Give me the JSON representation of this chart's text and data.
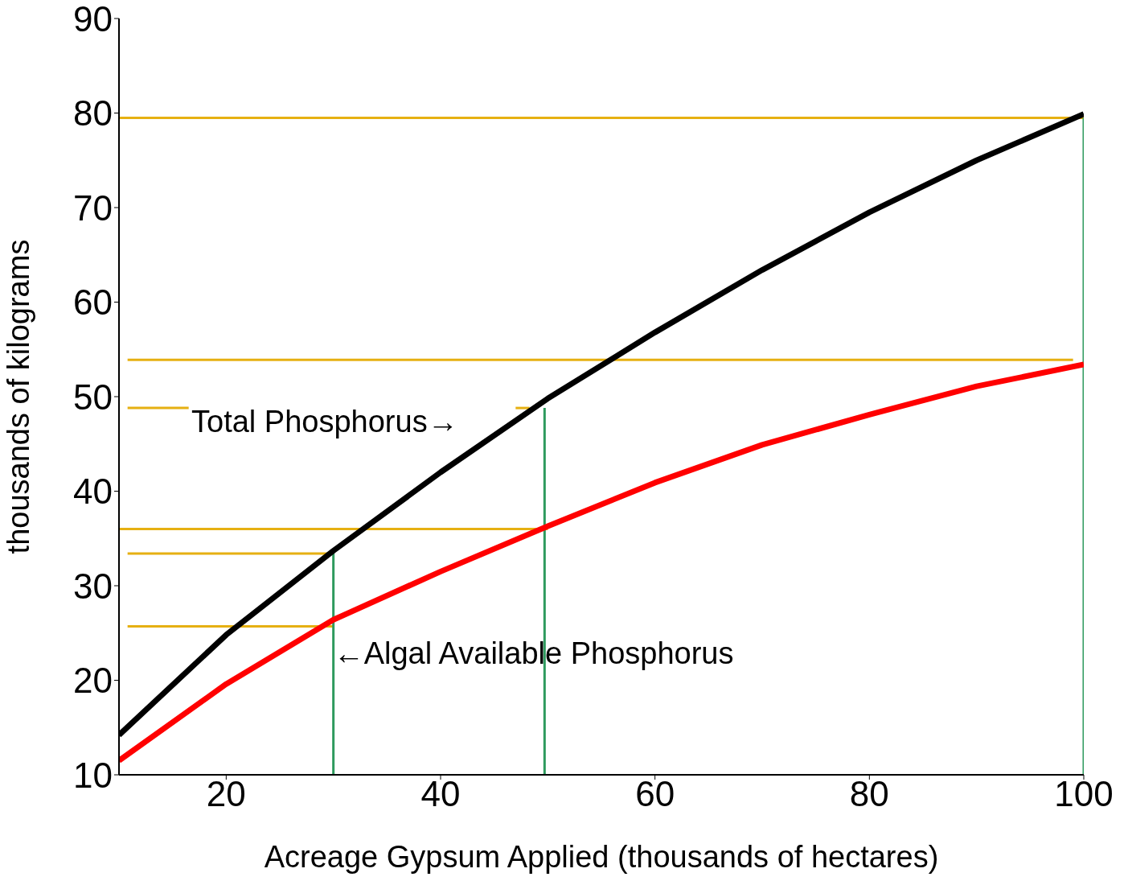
{
  "chart_data": {
    "type": "line",
    "xlabel": "Acreage Gypsum Applied (thousands of hectares)",
    "ylabel": "thousands of kilograms",
    "x": [
      10,
      20,
      30,
      40,
      50,
      60,
      70,
      80,
      90,
      100
    ],
    "xlim": [
      10,
      100
    ],
    "xticks": [
      20,
      40,
      60,
      80,
      100
    ],
    "ylim": [
      10,
      90
    ],
    "yticks": [
      10,
      20,
      30,
      40,
      50,
      60,
      70,
      80,
      90
    ],
    "marker": "none",
    "line_style": "solid",
    "series": [
      {
        "color": "#e6b012",
        "x": [
          10,
          100
        ],
        "values": [
          79.5,
          79.5
        ]
      },
      {
        "color": "#e6b012",
        "x": [
          10.8,
          99
        ],
        "values": [
          53.9,
          53.9
        ]
      },
      {
        "color": "#e6b012",
        "x": [
          10.8,
          16.5
        ],
        "values": [
          48.8,
          48.8
        ]
      },
      {
        "color": "#e6b012",
        "x": [
          47,
          48.3
        ],
        "values": [
          48.8,
          48.8
        ]
      },
      {
        "color": "#e6b012",
        "x": [
          10,
          50
        ],
        "values": [
          36,
          36
        ]
      },
      {
        "color": "#e6b012",
        "x": [
          10.8,
          30
        ],
        "values": [
          33.4,
          33.4
        ]
      },
      {
        "color": "#e6b012",
        "x": [
          10.8,
          30
        ],
        "values": [
          25.7,
          25.7
        ]
      },
      {
        "color": "#2e9a5e",
        "x": [
          30,
          30
        ],
        "values": [
          10,
          33.4
        ]
      },
      {
        "color": "#2e9a5e",
        "x": [
          49.7,
          49.7
        ],
        "values": [
          10,
          48.8
        ]
      },
      {
        "color": "#2e9a5e",
        "x": [
          100,
          100
        ],
        "values": [
          10,
          79.5
        ]
      },
      {
        "color": "#000000",
        "values": [
          14.2,
          24.8,
          33.7,
          42,
          49.8,
          56.8,
          63.4,
          69.5,
          75,
          79.9
        ]
      },
      {
        "color": "#ff0000",
        "values": [
          11.5,
          19.6,
          26.4,
          31.5,
          36.3,
          40.9,
          44.9,
          48.1,
          51.1,
          53.4
        ]
      }
    ],
    "annotations": [
      "Total Phosphorus→",
      {
        "text": "←Algal Available Phosphorus",
        "x": 30,
        "y": 22.9
      }
    ]
  }
}
